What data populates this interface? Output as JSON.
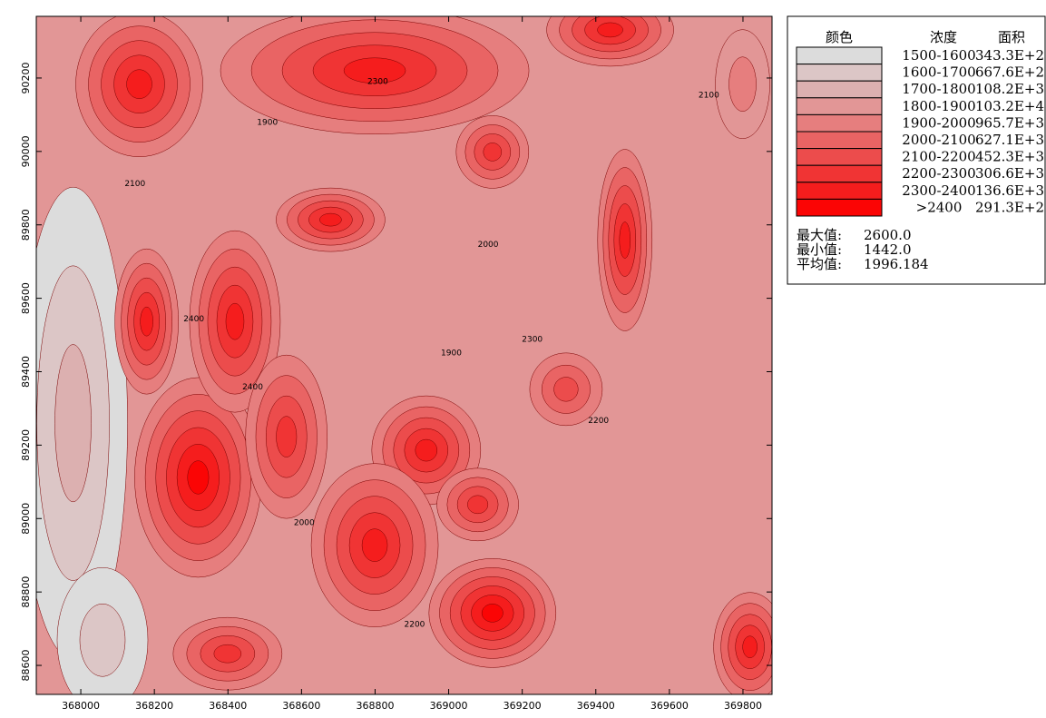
{
  "chart_data": {
    "type": "contour",
    "xlim": [
      367879,
      369879
    ],
    "ylim": [
      88521,
      90368
    ],
    "xticks": [
      368000,
      368200,
      368400,
      368600,
      368800,
      369000,
      369200,
      369400,
      369600,
      369800
    ],
    "yticks": [
      88600,
      88800,
      89000,
      89200,
      89400,
      89600,
      89800,
      90000,
      90200
    ],
    "contour_labels": [
      1900,
      2000,
      2100,
      2200,
      2300,
      2400
    ],
    "legend": {
      "headers": [
        "颜色",
        "浓度",
        "面积"
      ],
      "levels": [
        {
          "range": "1500-1600",
          "color": "#dcdcdc",
          "area": {
            "value": 34330,
            "label": "343.3E+2"
          }
        },
        {
          "range": "1600-1700",
          "color": "#dcc6c6",
          "area": {
            "value": 66760,
            "label": "667.6E+2"
          }
        },
        {
          "range": "1700-1800",
          "color": "#dcb0b0",
          "area": {
            "value": 108200,
            "label": "108.2E+3"
          }
        },
        {
          "range": "1800-1900",
          "color": "#e29696",
          "area": {
            "value": 1032000,
            "label": "103.2E+4"
          }
        },
        {
          "range": "1900-2000",
          "color": "#e67e7e",
          "area": {
            "value": 965700,
            "label": "965.7E+3"
          }
        },
        {
          "range": "2000-2100",
          "color": "#e96464",
          "area": {
            "value": 627100,
            "label": "627.1E+3"
          }
        },
        {
          "range": "2100-2200",
          "color": "#ec4c4c",
          "area": {
            "value": 452300,
            "label": "452.3E+3"
          }
        },
        {
          "range": "2200-2300",
          "color": "#f03434",
          "area": {
            "value": 306600,
            "label": "306.6E+3"
          }
        },
        {
          "range": "2300-2400",
          "color": "#f51d1d",
          "area": {
            "value": 136600,
            "label": "136.6E+3"
          }
        },
        {
          "range": ">2400",
          "color": "#fb0505",
          "area": {
            "value": 29130,
            "label": "291.3E+2"
          }
        }
      ]
    },
    "stats": [
      {
        "label": "最大值:",
        "value": {
          "value": 2600,
          "label": "2600.0"
        }
      },
      {
        "label": "最小值:",
        "value": {
          "value": 1442,
          "label": "1442.0"
        }
      },
      {
        "label": "平均值:",
        "value": 1996.184
      }
    ]
  }
}
